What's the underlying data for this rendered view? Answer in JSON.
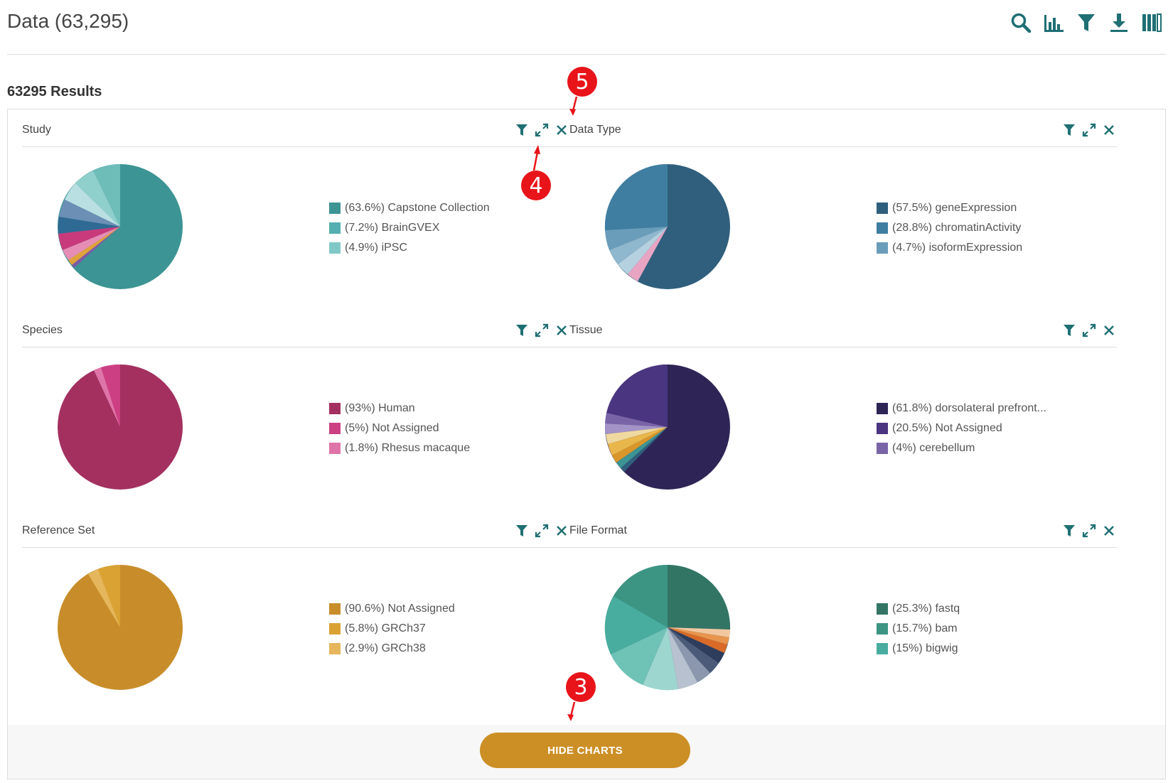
{
  "header": {
    "title": "Data (63,295)"
  },
  "toolbar": {
    "icons": [
      "search-icon",
      "bar-chart-icon",
      "filter-icon",
      "download-icon",
      "columns-icon"
    ],
    "color": "#1f6f73"
  },
  "results": {
    "count_label": "63295 Results"
  },
  "charts": [
    {
      "title": "Study",
      "legend": [
        {
          "label": "(63.6%) Capstone Collection",
          "color": "#3d9494"
        },
        {
          "label": "(7.2%) BrainGVEX",
          "color": "#55aeb0"
        },
        {
          "label": "(4.9%) iPSC",
          "color": "#80c8c6"
        }
      ]
    },
    {
      "title": "Data Type",
      "legend": [
        {
          "label": "(57.5%) geneExpression",
          "color": "#2f5f7c"
        },
        {
          "label": "(28.8%) chromatinActivity",
          "color": "#3f7ea1"
        },
        {
          "label": "(4.7%) isoformExpression",
          "color": "#6a9dba"
        }
      ]
    },
    {
      "title": "Species",
      "legend": [
        {
          "label": "(93%) Human",
          "color": "#a3305f"
        },
        {
          "label": "(5%) Not Assigned",
          "color": "#cc3f82"
        },
        {
          "label": "(1.8%) Rhesus macaque",
          "color": "#df74a8"
        }
      ]
    },
    {
      "title": "Tissue",
      "legend": [
        {
          "label": "(61.8%) dorsolateral prefront...",
          "color": "#2f2456"
        },
        {
          "label": "(20.5%) Not Assigned",
          "color": "#4a3580"
        },
        {
          "label": "(4%) cerebellum",
          "color": "#7a64a8"
        }
      ]
    },
    {
      "title": "Reference Set",
      "legend": [
        {
          "label": "(90.6%) Not Assigned",
          "color": "#c88d2a"
        },
        {
          "label": "(5.8%) GRCh37",
          "color": "#d9a233"
        },
        {
          "label": "(2.9%) GRCh38",
          "color": "#e5b65b"
        }
      ]
    },
    {
      "title": "File Format",
      "legend": [
        {
          "label": "(25.3%) fastq",
          "color": "#337565"
        },
        {
          "label": "(15.7%) bam",
          "color": "#3b9582"
        },
        {
          "label": "(15%) bigwig",
          "color": "#48ac9e"
        }
      ]
    }
  ],
  "card_action_icons": [
    "filter-icon",
    "expand-icon",
    "close-icon"
  ],
  "footer": {
    "hide_button_label": "HIDE CHARTS"
  },
  "markers": [
    "5",
    "4",
    "3"
  ]
}
